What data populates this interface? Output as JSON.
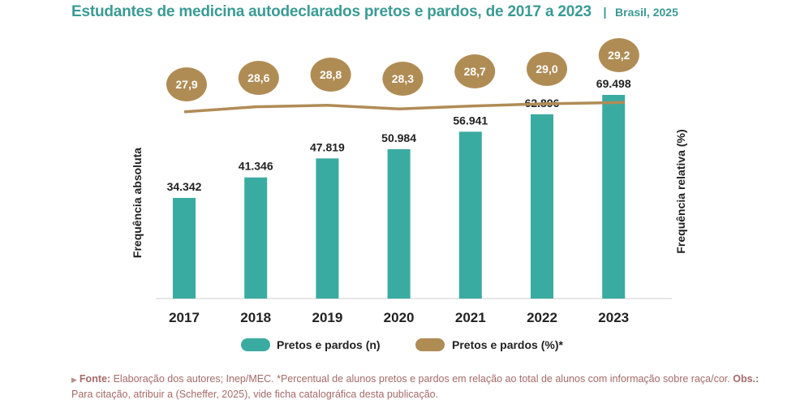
{
  "header": {
    "title": "Estudantes de medicina autodeclarados pretos e pardos, de 2017 a 2023",
    "separator": "|",
    "subtitle": "Brasil, 2025"
  },
  "chart_data": {
    "type": "bar",
    "categories": [
      "2017",
      "2018",
      "2019",
      "2020",
      "2021",
      "2022",
      "2023"
    ],
    "series": [
      {
        "name": "Pretos e pardos (n)",
        "kind": "bar",
        "axis": "left",
        "values": [
          34342,
          41346,
          47819,
          50984,
          56941,
          62896,
          69498
        ],
        "labels": [
          "34.342",
          "41.346",
          "47.819",
          "50.984",
          "56.941",
          "62.896",
          "69.498"
        ]
      },
      {
        "name": "Pretos e pardos (%)*",
        "kind": "line",
        "axis": "right",
        "values": [
          27.9,
          28.6,
          28.8,
          28.3,
          28.7,
          29.0,
          29.2
        ],
        "labels": [
          "27,9",
          "28,6",
          "28,8",
          "28,3",
          "28,7",
          "29,0",
          "29,2"
        ]
      }
    ],
    "ylabel": "Frequência absoluta",
    "y2label": "Frequência relativa (%)",
    "grid": false,
    "legend_position": "bottom",
    "colors": {
      "bar": "#3aaba1",
      "line": "#b08c55",
      "title": "#3a9b93"
    }
  },
  "footer": {
    "fonte_label": "Fonte:",
    "fonte_text": " Elaboração dos autores; Inep/MEC. *Percentual de alunos pretos e pardos em relação ao total de alunos com informação sobre raça/cor. ",
    "obs_label": "Obs.:",
    "obs_text": " Para citação, atribuir a (Scheffer, 2025), vide ficha catalográfica desta publicação."
  }
}
